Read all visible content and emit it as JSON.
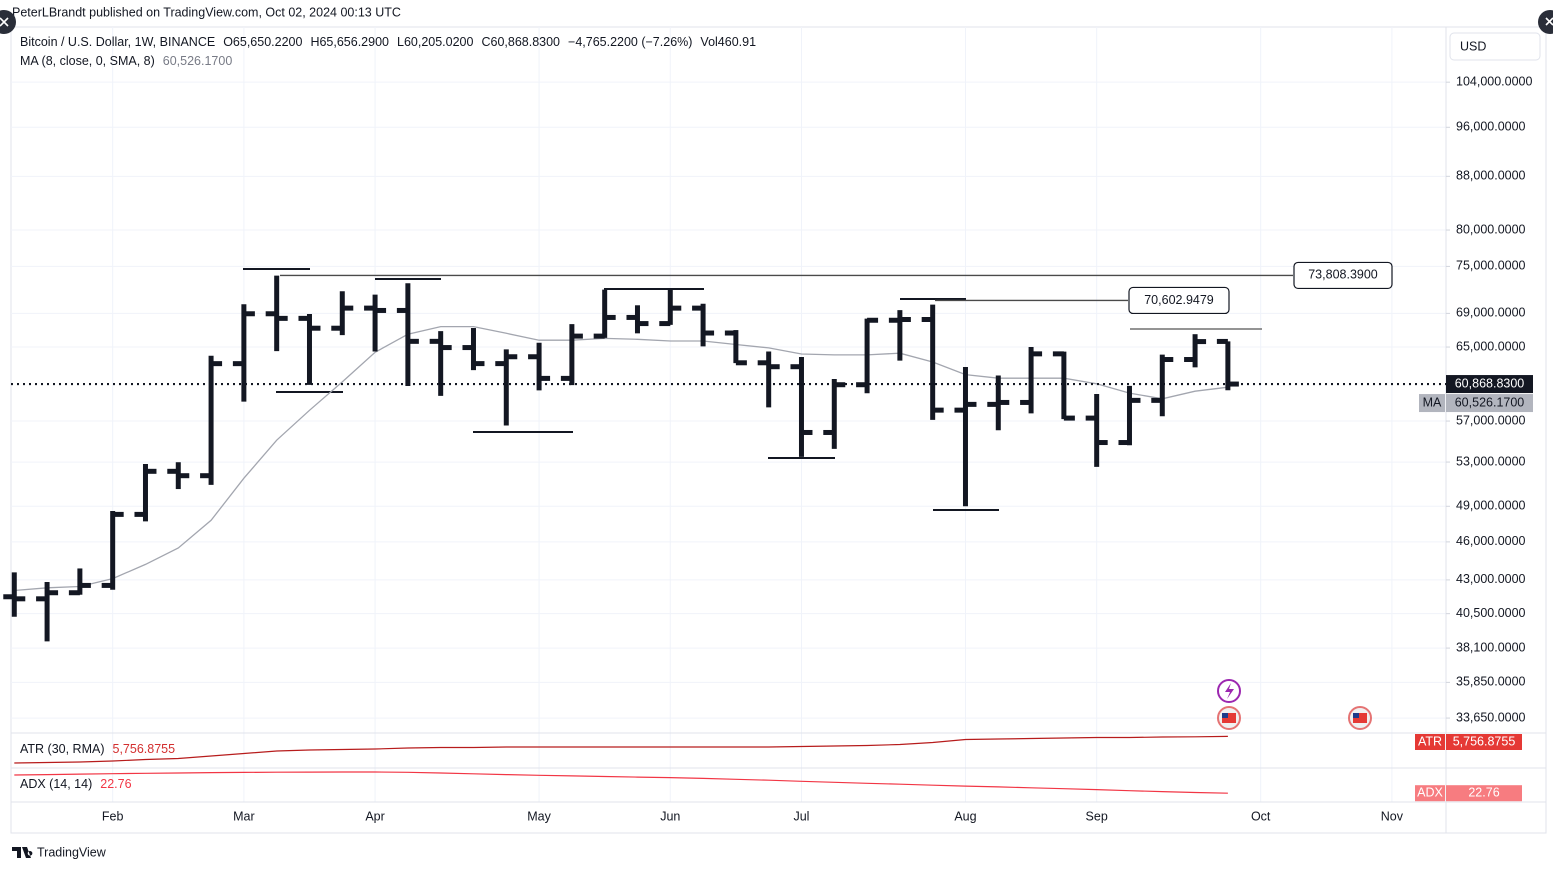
{
  "header": {
    "text": "PeterLBrandt published on TradingView.com, Oct 02, 2024 00:13 UTC"
  },
  "chart_data": [
    {
      "type": "ohlc",
      "currency": "USD",
      "categories": [
        null,
        null,
        null,
        null,
        null,
        null,
        null,
        null,
        null,
        null,
        null,
        null,
        null,
        null,
        null,
        null,
        null,
        null,
        null,
        null,
        null,
        null,
        null,
        null,
        null,
        null,
        null,
        null,
        null,
        null,
        null,
        null,
        null,
        null,
        null,
        null,
        null,
        null
      ],
      "xlim": [
        -0.1,
        43.65
      ],
      "xticks": [
        {
          "value": 3,
          "label": "Feb"
        },
        {
          "value": 7,
          "label": "Mar"
        },
        {
          "value": 11,
          "label": "Apr"
        },
        {
          "value": 16,
          "label": "May"
        },
        {
          "value": 20,
          "label": "Jun"
        },
        {
          "value": 24,
          "label": "Jul"
        },
        {
          "value": 29,
          "label": "Aug"
        },
        {
          "value": 33,
          "label": "Sep"
        },
        {
          "value": 38,
          "label": "Oct"
        },
        {
          "value": 42,
          "label": "Nov"
        }
      ],
      "ylim": [
        32770,
        114700
      ],
      "log_scale": true,
      "grid": true,
      "yticks": [
        {
          "value": 104000,
          "label": "104,000.0000"
        },
        {
          "value": 96000,
          "label": "96,000.0000"
        },
        {
          "value": 88000,
          "label": "88,000.0000"
        },
        {
          "value": 80000,
          "label": "80,000.0000"
        },
        {
          "value": 75000,
          "label": "75,000.0000"
        },
        {
          "value": 69000,
          "label": "69,000.0000"
        },
        {
          "value": 65000,
          "label": "65,000.0000"
        },
        {
          "value": 57000,
          "label": "57,000.0000"
        },
        {
          "value": 53000,
          "label": "53,000.0000"
        },
        {
          "value": 49000,
          "label": "49,000.0000"
        },
        {
          "value": 46000,
          "label": "46,000.0000"
        },
        {
          "value": 43000,
          "label": "43,000.0000"
        },
        {
          "value": 40500,
          "label": "40,500.0000"
        },
        {
          "value": 38100,
          "label": "38,100.0000"
        },
        {
          "value": 35850,
          "label": "35,850.0000"
        },
        {
          "value": 33650,
          "label": "33,650.0000"
        }
      ],
      "series": [
        {
          "name": "Bitcoin / U.S. Dollar, 1W, BINANCE",
          "color": "#131722",
          "open": [
            41732,
            41580,
            42031,
            42580,
            48300,
            52137,
            51733,
            63114,
            68955,
            68393,
            67210,
            69650,
            69360,
            65661,
            64941,
            63118,
            63891,
            61484,
            66274,
            68507,
            67765,
            69648,
            66639,
            63210,
            62772,
            55857,
            60797,
            68165,
            68255,
            58116,
            58712,
            58914,
            64220,
            57301,
            54869,
            59132,
            63578,
            65650.22
          ],
          "high": [
            43578,
            42842,
            43882,
            48592,
            52816,
            52985,
            64000,
            70136,
            73777,
            68920,
            71769,
            71342,
            72797,
            66868,
            67233,
            64734,
            65500,
            67700,
            71979,
            70000,
            71997,
            70195,
            66988,
            64490,
            63861,
            61420,
            68366,
            69399,
            70079,
            62745,
            61800,
            65000,
            64481,
            59809,
            60670,
            64133,
            66500,
            65656.29
          ],
          "low": [
            40280,
            38555,
            41884,
            42258,
            47710,
            50521,
            50901,
            59005,
            64533,
            60775,
            66385,
            64493,
            60660,
            59600,
            62391,
            56552,
            60187,
            60749,
            66060,
            66600,
            67612,
            65078,
            63173,
            58402,
            53485,
            54260,
            59880,
            63456,
            57122,
            49000,
            56078,
            57787,
            57201,
            52550,
            54600,
            57493,
            62700,
            60205.02
          ],
          "close": [
            41580,
            42031,
            42580,
            48300,
            52137,
            51733,
            63114,
            68955,
            68393,
            67210,
            69650,
            69360,
            65661,
            64941,
            63118,
            63891,
            61484,
            66274,
            68507,
            67765,
            69648,
            66639,
            63210,
            62772,
            55857,
            60797,
            68165,
            68255,
            58116,
            58712,
            58914,
            64220,
            57301,
            54869,
            59132,
            63578,
            65634.05,
            60868.83
          ],
          "legend_values": [
            "O65,650.2200",
            "H65,656.2900",
            "L60,205.0200",
            "C60,868.8300",
            "−4,765.2200 (−7.26%)",
            "Vol460.91"
          ]
        },
        {
          "name": "MA (8, close, 0, SMA, 8)",
          "color": "#a3a6af",
          "tag": "MA",
          "value_label": "60,526.1700",
          "values": [
            42200,
            42400,
            42500,
            43100,
            44200,
            45500,
            47800,
            51500,
            55100,
            58100,
            61100,
            64400,
            66500,
            67400,
            67400,
            66600,
            65800,
            65800,
            66000,
            65900,
            65700,
            65700,
            65300,
            64900,
            64200,
            64100,
            64100,
            64300,
            63300,
            61900,
            61500,
            61500,
            61500,
            60900,
            59900,
            59300,
            60100,
            60526.17
          ]
        }
      ],
      "last_price": {
        "value": 60868.83,
        "label": "60,868.8300"
      },
      "levels": [
        {
          "value": 73808.39,
          "label": "73,808.3900"
        },
        {
          "value": 70602.9479,
          "label": "70,602.9479"
        }
      ]
    },
    {
      "type": "line",
      "name": "ATR (30, RMA)",
      "tag": "ATR",
      "color": "#b71c1c",
      "tag_color": "#e53935",
      "value_label": "5,756.8755",
      "ylim": [
        2600,
        6100
      ],
      "values": [
        3100,
        3150,
        3200,
        3300,
        3450,
        3550,
        3800,
        4050,
        4300,
        4400,
        4450,
        4500,
        4600,
        4650,
        4650,
        4700,
        4700,
        4700,
        4700,
        4700,
        4700,
        4700,
        4700,
        4700,
        4750,
        4800,
        4850,
        4950,
        5150,
        5450,
        5500,
        5550,
        5600,
        5650,
        5650,
        5700,
        5720,
        5756.8755
      ]
    },
    {
      "type": "line",
      "name": "ADX (14, 14)",
      "tag": "ADX",
      "color": "#f23645",
      "tag_color": "#f77c80",
      "value_label": "22.76",
      "ylim": [
        15,
        45
      ],
      "values": [
        38.8,
        39.2,
        39.6,
        40,
        40.3,
        40.6,
        40.9,
        41.1,
        41.3,
        41.4,
        41.5,
        41.5,
        41.2,
        40.6,
        39.9,
        39.2,
        38.6,
        38,
        37.5,
        37,
        36.5,
        35.8,
        35,
        34.2,
        33.3,
        32.4,
        31.5,
        30.7,
        29.8,
        29,
        28.3,
        27.5,
        26.7,
        25.9,
        25,
        24.2,
        23.4,
        22.76
      ]
    }
  ],
  "footer": {
    "brand": "TradingView"
  }
}
